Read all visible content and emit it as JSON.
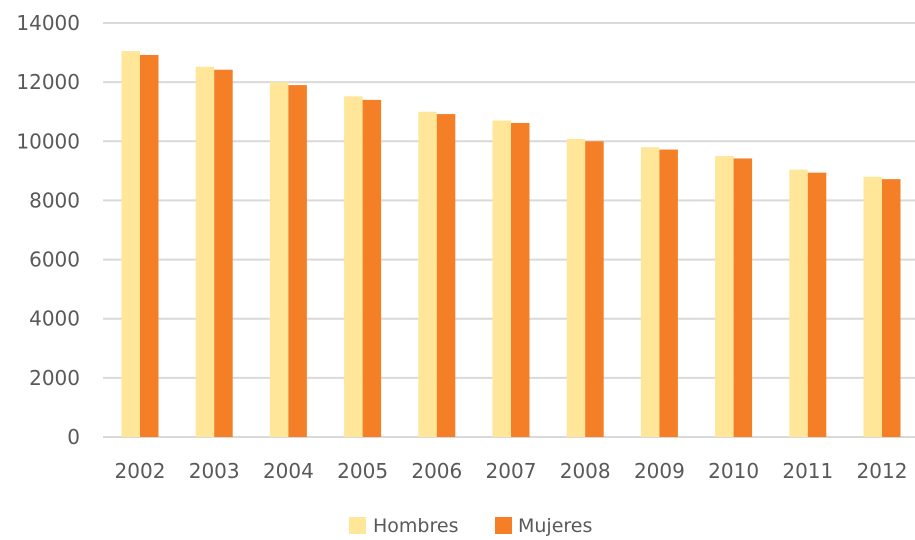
{
  "chart_data": {
    "type": "bar",
    "title": "",
    "xlabel": "",
    "ylabel": "",
    "categories": [
      "2002",
      "2003",
      "2004",
      "2005",
      "2006",
      "2007",
      "2008",
      "2009",
      "2010",
      "2011",
      "2012"
    ],
    "series": [
      {
        "name": "Hombres",
        "color": "#FFE699",
        "values": [
          13050,
          12520,
          12000,
          11520,
          11000,
          10700,
          10080,
          9800,
          9500,
          9040,
          8800
        ]
      },
      {
        "name": "Mujeres",
        "color": "#F47F27",
        "values": [
          12920,
          12420,
          11900,
          11400,
          10920,
          10620,
          10000,
          9720,
          9420,
          8940,
          8720
        ]
      }
    ],
    "ylim": [
      0,
      14000
    ],
    "yticks": [
      0,
      2000,
      4000,
      6000,
      8000,
      10000,
      12000,
      14000
    ],
    "grid": true,
    "legend_position": "bottom"
  }
}
